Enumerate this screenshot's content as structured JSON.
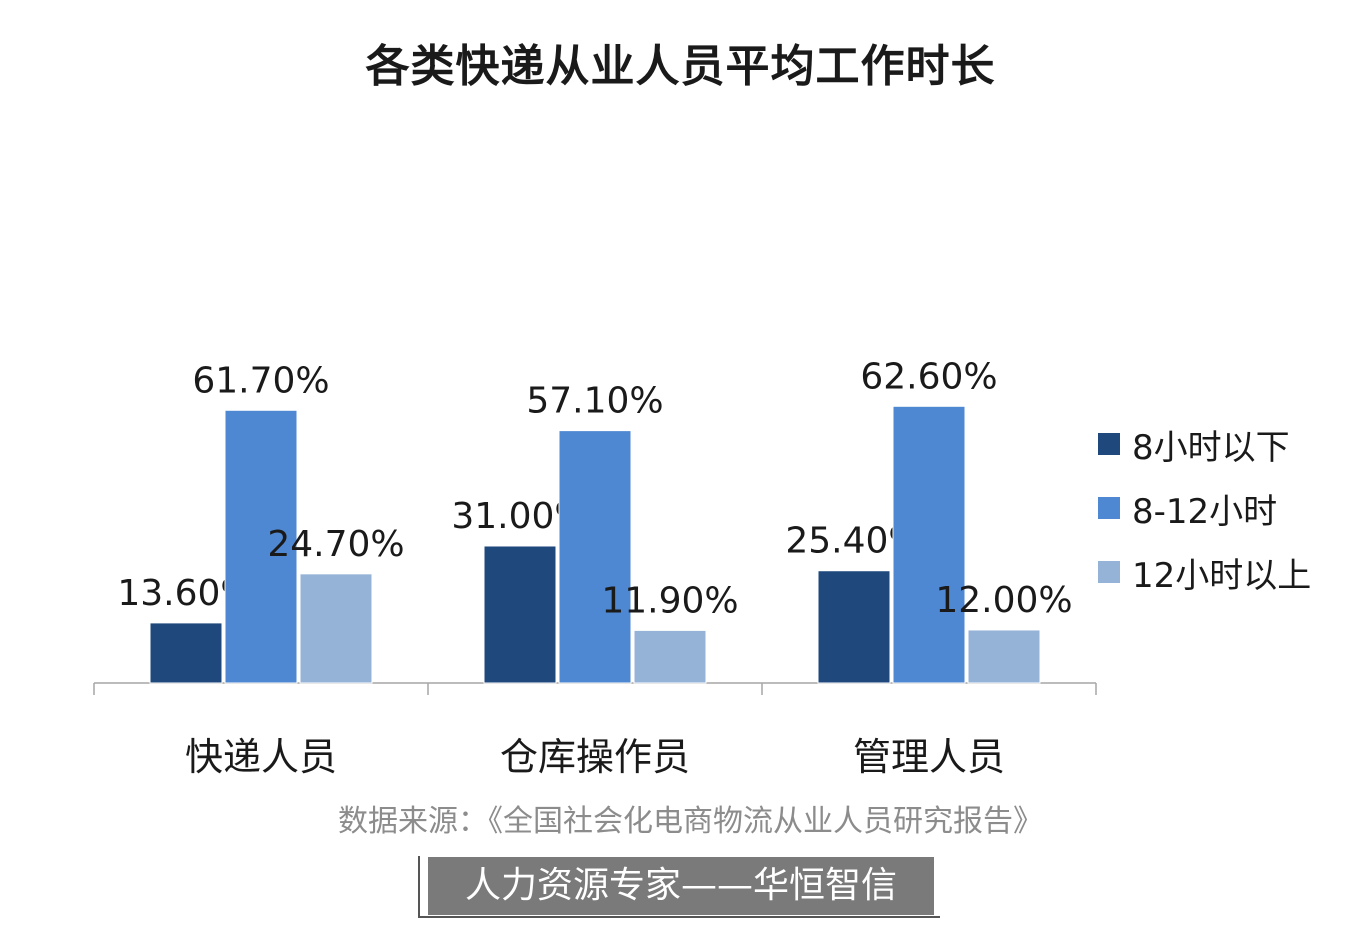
{
  "chart_data": {
    "type": "bar",
    "title": "各类快递从业人员平均工作时长",
    "categories": [
      "快递人员",
      "仓库操作员",
      "管理人员"
    ],
    "series": [
      {
        "name": "8小时以下",
        "color": "#1f497d",
        "values": [
          13.6,
          31.0,
          25.4
        ],
        "labels": [
          "13.60%",
          "31.00%",
          "25.40%"
        ]
      },
      {
        "name": "8-12小时",
        "color": "#4f88d2",
        "values": [
          61.7,
          57.1,
          62.6
        ],
        "labels": [
          "61.70%",
          "57.10%",
          "62.60%"
        ]
      },
      {
        "name": "12小时以上",
        "color": "#95b3d7",
        "values": [
          24.7,
          11.9,
          12.0
        ],
        "labels": [
          "24.70%",
          "11.90%",
          "12.00%"
        ]
      }
    ],
    "ylim": [
      0,
      100
    ],
    "grid": false,
    "legend_position": "right"
  },
  "footer": {
    "source": "数据来源：《全国社会化电商物流从业人员研究报告》",
    "banner": "人力资源专家——华恒智信"
  }
}
